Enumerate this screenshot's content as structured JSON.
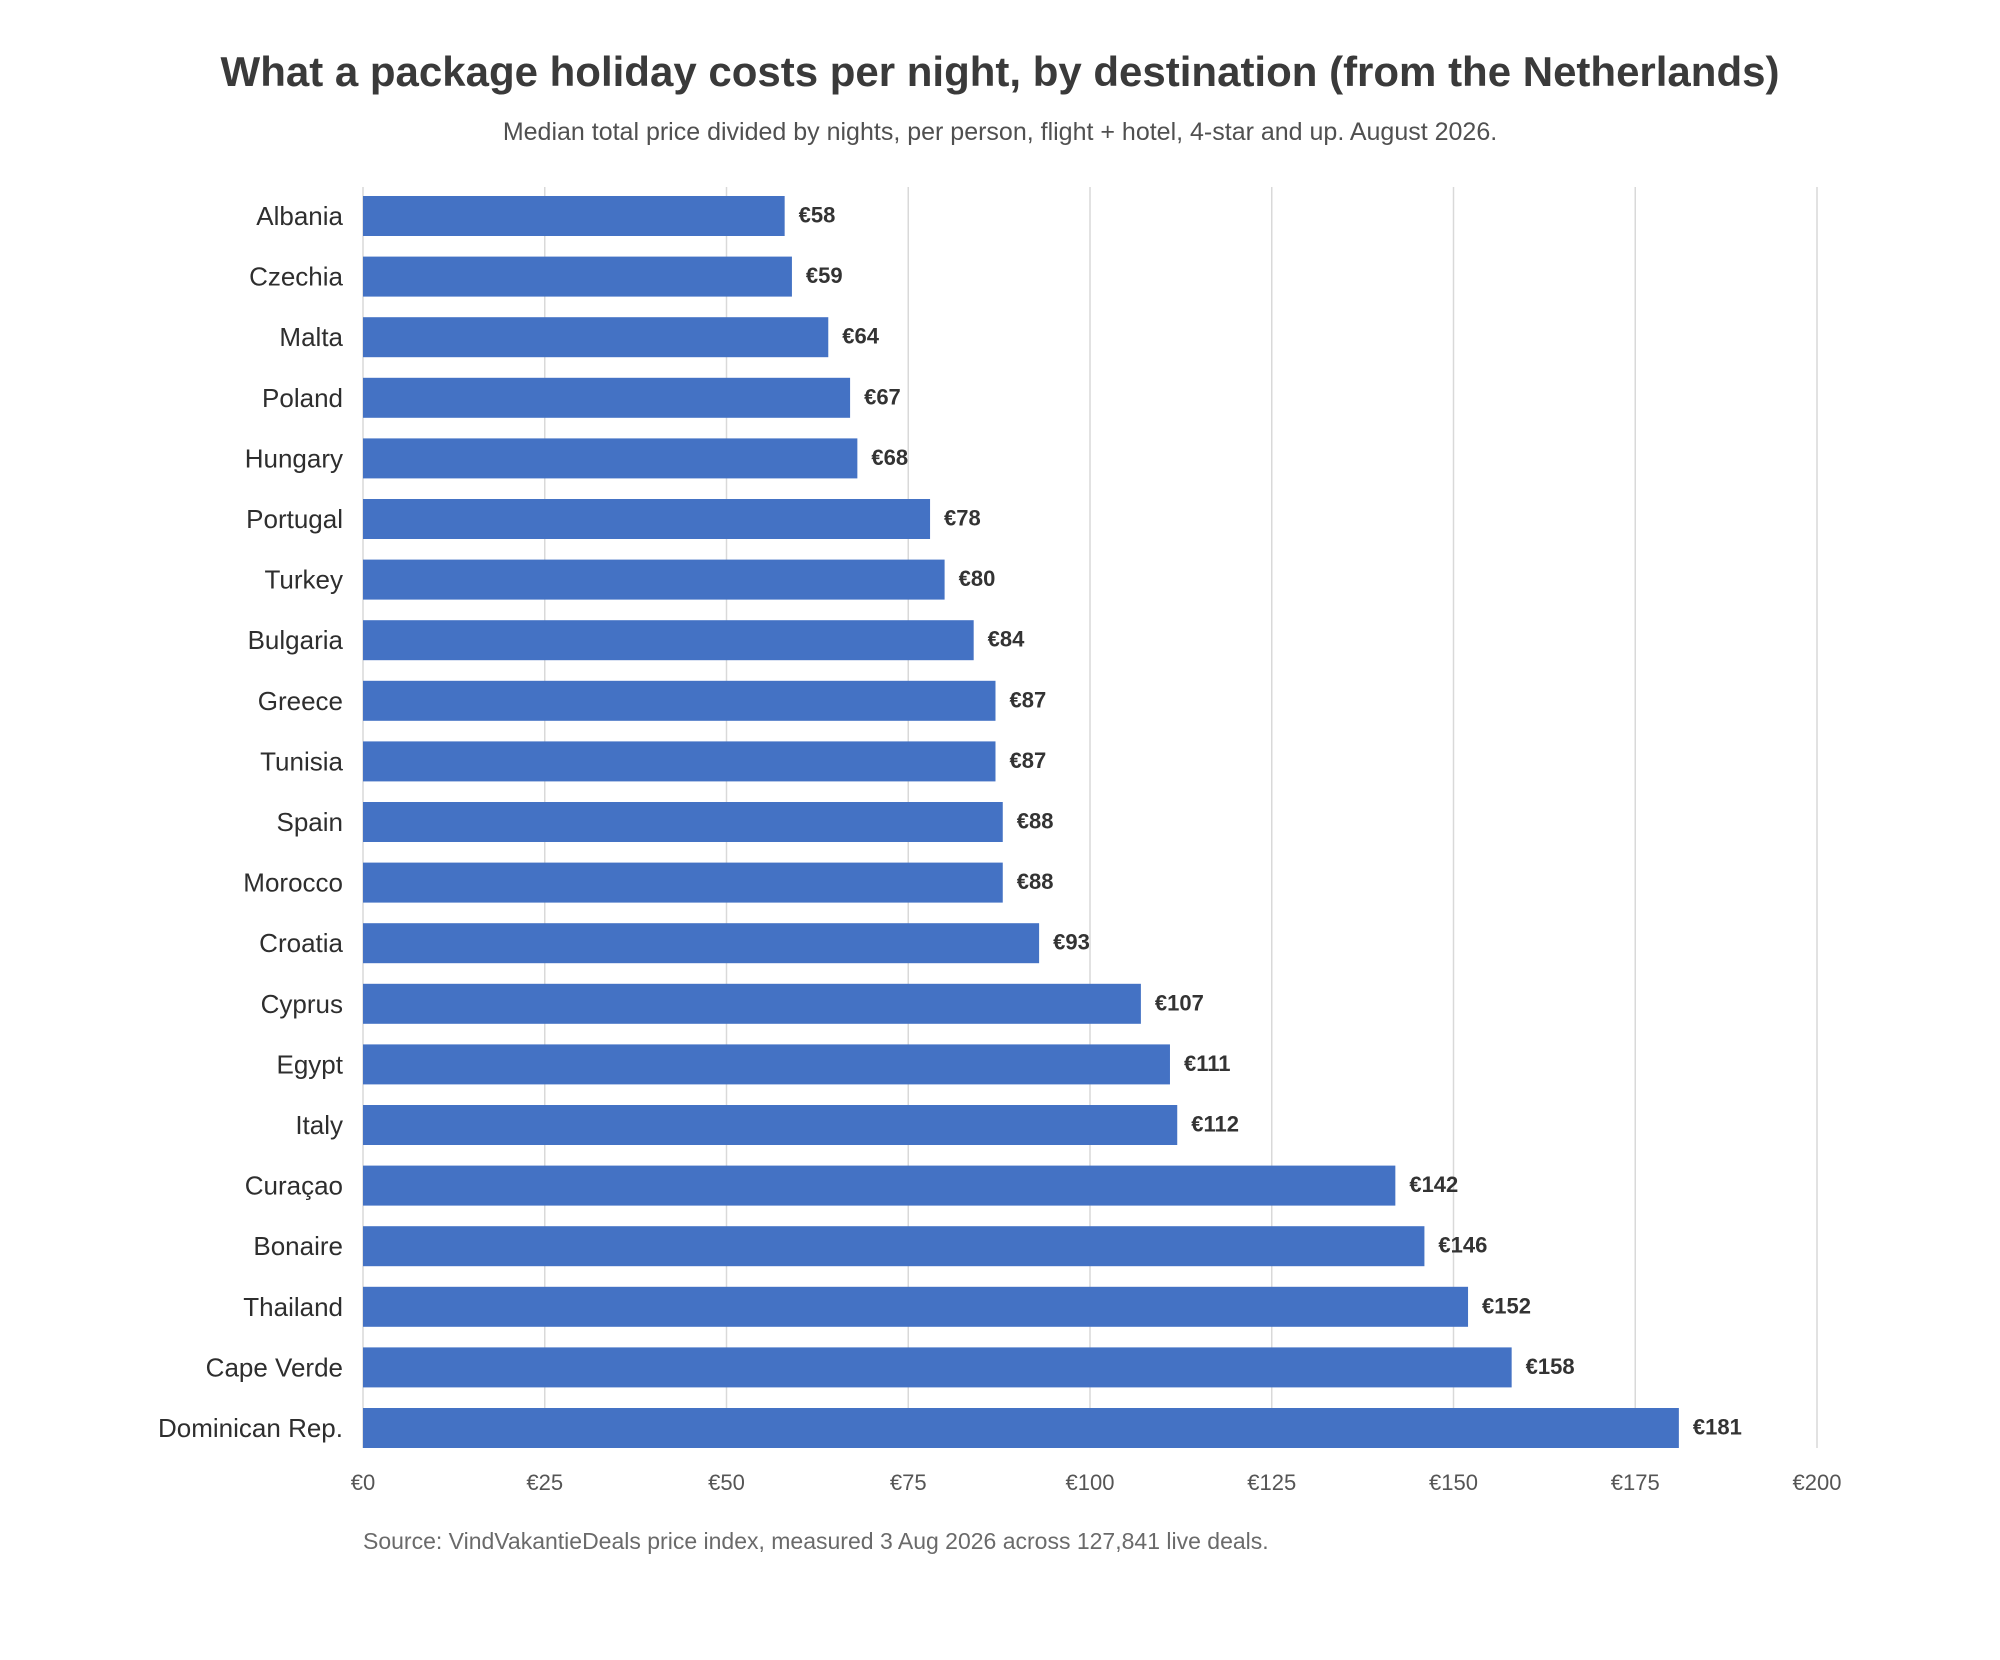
{
  "chart_data": {
    "type": "bar",
    "orientation": "horizontal",
    "title": "What a package holiday costs per night, by destination (from the Netherlands)",
    "subtitle": "Median total price divided by nights, per person, flight + hotel, 4-star and up. August 2026.",
    "source": "Source: VindVakantieDeals price index, measured 3 Aug 2026 across 127,841 live deals.",
    "categories": [
      "Albania",
      "Czechia",
      "Malta",
      "Poland",
      "Hungary",
      "Portugal",
      "Turkey",
      "Bulgaria",
      "Greece",
      "Tunisia",
      "Spain",
      "Morocco",
      "Croatia",
      "Cyprus",
      "Egypt",
      "Italy",
      "Curaçao",
      "Bonaire",
      "Thailand",
      "Cape Verde",
      "Dominican Rep."
    ],
    "values": [
      58,
      59,
      64,
      67,
      68,
      78,
      80,
      84,
      87,
      87,
      88,
      88,
      93,
      107,
      111,
      112,
      142,
      146,
      152,
      158,
      181
    ],
    "value_labels": [
      "€58",
      "€59",
      "€64",
      "€67",
      "€68",
      "€78",
      "€80",
      "€84",
      "€87",
      "€87",
      "€88",
      "€88",
      "€93",
      "€107",
      "€111",
      "€112",
      "€142",
      "€146",
      "€152",
      "€158",
      "€181"
    ],
    "xlim": [
      0,
      200
    ],
    "x_ticks": [
      0,
      25,
      50,
      75,
      100,
      125,
      150,
      175,
      200
    ],
    "x_tick_labels": [
      "€0",
      "€25",
      "€50",
      "€75",
      "€100",
      "€125",
      "€150",
      "€175",
      "€200"
    ],
    "xlabel": "",
    "ylabel": "",
    "grid": "vertical",
    "bar_color": "#4472c4",
    "grid_color": "#d9d9d9"
  }
}
